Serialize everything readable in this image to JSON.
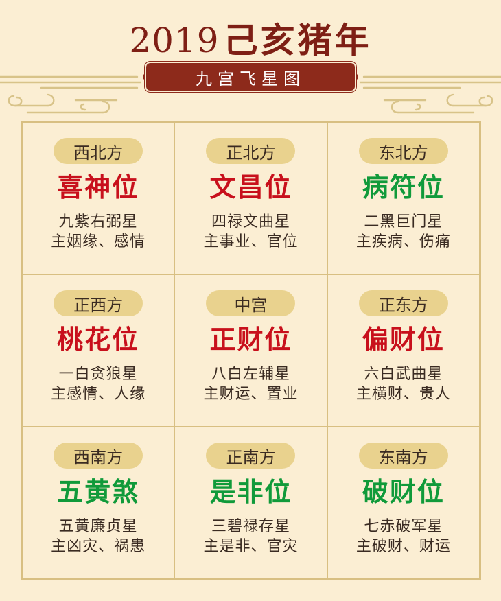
{
  "header": {
    "year": "2019",
    "title": "己亥猪年",
    "subtitle": "九宫飞星图"
  },
  "colors": {
    "background": "#fbeed3",
    "title": "#7e1f15",
    "banner": "#8d2a1b",
    "pill": "#e9d28e",
    "grid_line": "#d8bf82",
    "auspicious": "#c8101c",
    "inauspicious": "#109a3a"
  },
  "cells": [
    {
      "direction": "西北方",
      "name": "喜神位",
      "tone": "red",
      "star": "九紫右弼星",
      "meaning": "主姻缘、感情"
    },
    {
      "direction": "正北方",
      "name": "文昌位",
      "tone": "red",
      "star": "四禄文曲星",
      "meaning": "主事业、官位"
    },
    {
      "direction": "东北方",
      "name": "病符位",
      "tone": "green",
      "star": "二黑巨门星",
      "meaning": "主疾病、伤痛"
    },
    {
      "direction": "正西方",
      "name": "桃花位",
      "tone": "red",
      "star": "一白贪狼星",
      "meaning": "主感情、人缘"
    },
    {
      "direction": "中宫",
      "name": "正财位",
      "tone": "red",
      "star": "八白左辅星",
      "meaning": "主财运、置业"
    },
    {
      "direction": "正东方",
      "name": "偏财位",
      "tone": "red",
      "star": "六白武曲星",
      "meaning": "主横财、贵人"
    },
    {
      "direction": "西南方",
      "name": "五黄煞",
      "tone": "green",
      "star": "五黄廉贞星",
      "meaning": "主凶灾、祸患"
    },
    {
      "direction": "正南方",
      "name": "是非位",
      "tone": "green",
      "star": "三碧禄存星",
      "meaning": "主是非、官灾"
    },
    {
      "direction": "东南方",
      "name": "破财位",
      "tone": "green",
      "star": "七赤破军星",
      "meaning": "主破财、财运"
    }
  ]
}
